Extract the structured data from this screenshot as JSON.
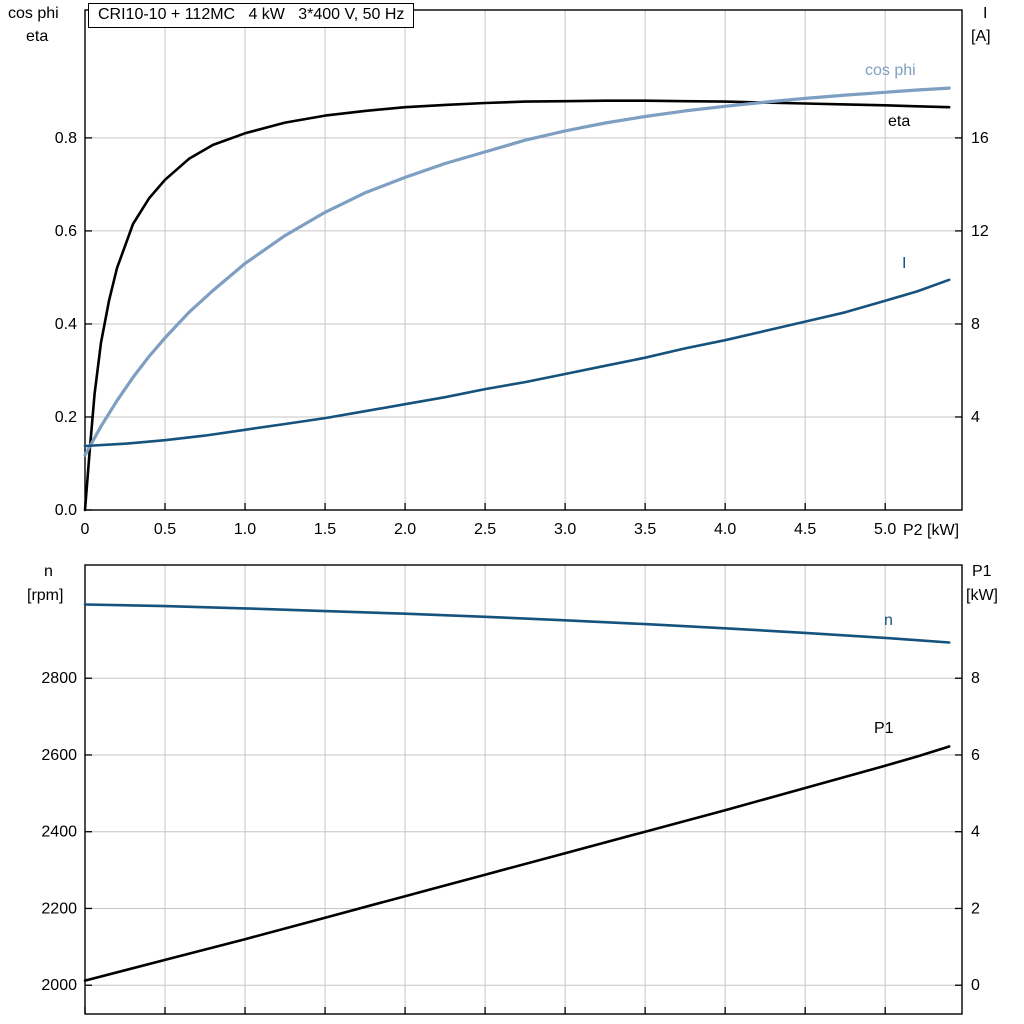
{
  "title_box": {
    "text": "CRI10-10 + 112MC   4 kW   3*400 V, 50 Hz"
  },
  "colors": {
    "black": "#000000",
    "light_blue": "#7e9fc1",
    "dark_blue": "#15527d",
    "grid": "#c6c6c6",
    "frame": "#000000",
    "background": "#ffffff"
  },
  "axis_corner_labels": {
    "top_left_line1": "cos phi",
    "top_left_line2": "eta",
    "top_right_line1": "I",
    "top_right_line2": "[A]",
    "bottom_left_line1": "n",
    "bottom_left_line2": "[rpm]",
    "bottom_right_line1": "P1",
    "bottom_right_line2": "[kW]"
  },
  "chart_data": [
    {
      "id": "top",
      "type": "line",
      "title": "CRI10-10 + 112MC   4 kW   3*400 V, 50 Hz",
      "xlabel": "P2 [kW]",
      "ylabel_left": "cos phi / eta",
      "ylabel_right": "I [A]",
      "xlim": [
        0,
        5.48
      ],
      "ylim_left": [
        0,
        1.075
      ],
      "ylim_right": [
        0,
        21.5
      ],
      "grid": true,
      "xticks": [
        0,
        0.5,
        1.0,
        1.5,
        2.0,
        2.5,
        3.0,
        3.5,
        4.0,
        4.5,
        5.0
      ],
      "xtick_labels": [
        "0",
        "0.5",
        "1.0",
        "1.5",
        "2.0",
        "2.5",
        "3.0",
        "3.5",
        "4.0",
        "4.5",
        "5.0"
      ],
      "show_xtick_labels": true,
      "yticks_left": [
        0.0,
        0.2,
        0.4,
        0.6,
        0.8
      ],
      "ytick_labels_left": [
        "0.0",
        "0.2",
        "0.4",
        "0.6",
        "0.8"
      ],
      "yticks_right": [
        4,
        8,
        12,
        16
      ],
      "ytick_labels_right": [
        "4",
        "8",
        "12",
        "16"
      ],
      "series": [
        {
          "name": "eta",
          "axis": "left",
          "color": "#000000",
          "width": 2.6,
          "x": [
            0,
            0.03,
            0.06,
            0.1,
            0.15,
            0.2,
            0.3,
            0.4,
            0.5,
            0.65,
            0.8,
            1.0,
            1.25,
            1.5,
            1.75,
            2.0,
            2.25,
            2.5,
            2.75,
            3.0,
            3.25,
            3.5,
            3.75,
            4.0,
            4.25,
            4.5,
            4.75,
            5.0,
            5.2,
            5.4
          ],
          "y": [
            0,
            0.13,
            0.25,
            0.36,
            0.45,
            0.52,
            0.615,
            0.67,
            0.71,
            0.755,
            0.785,
            0.81,
            0.833,
            0.848,
            0.858,
            0.866,
            0.871,
            0.875,
            0.878,
            0.879,
            0.88,
            0.88,
            0.879,
            0.878,
            0.876,
            0.874,
            0.872,
            0.87,
            0.868,
            0.866
          ]
        },
        {
          "name": "cos phi",
          "axis": "left",
          "color": "#7e9fc1",
          "width": 3.2,
          "x": [
            0,
            0.1,
            0.2,
            0.3,
            0.4,
            0.5,
            0.65,
            0.8,
            1.0,
            1.25,
            1.5,
            1.75,
            2.0,
            2.25,
            2.5,
            2.75,
            3.0,
            3.25,
            3.5,
            3.75,
            4.0,
            4.25,
            4.5,
            4.75,
            5.0,
            5.2,
            5.4
          ],
          "y": [
            0.118,
            0.18,
            0.235,
            0.285,
            0.33,
            0.37,
            0.425,
            0.472,
            0.53,
            0.59,
            0.64,
            0.682,
            0.715,
            0.745,
            0.77,
            0.795,
            0.815,
            0.832,
            0.846,
            0.858,
            0.868,
            0.877,
            0.885,
            0.892,
            0.898,
            0.903,
            0.907
          ]
        },
        {
          "name": "I",
          "axis": "right",
          "color": "#15527d",
          "width": 2.6,
          "x": [
            0,
            0.25,
            0.5,
            0.75,
            1.0,
            1.25,
            1.5,
            1.75,
            2.0,
            2.25,
            2.5,
            2.75,
            3.0,
            3.25,
            3.5,
            3.75,
            4.0,
            4.25,
            4.5,
            4.75,
            5.0,
            5.2,
            5.4
          ],
          "y": [
            2.75,
            2.85,
            3.0,
            3.2,
            3.45,
            3.7,
            3.95,
            4.25,
            4.55,
            4.85,
            5.2,
            5.5,
            5.85,
            6.2,
            6.55,
            6.95,
            7.3,
            7.7,
            8.1,
            8.5,
            9.0,
            9.4,
            9.9
          ]
        }
      ],
      "curve_labels": [
        {
          "text": "cos phi"
        },
        {
          "text": "eta"
        },
        {
          "text": "I"
        }
      ]
    },
    {
      "id": "bottom",
      "type": "line",
      "title": "",
      "xlabel": "",
      "ylabel_left": "n [rpm]",
      "ylabel_right": "P1 [kW]",
      "xlim": [
        0,
        5.48
      ],
      "ylim_left": [
        1925,
        3095
      ],
      "ylim_right": [
        -0.75,
        10.95
      ],
      "grid": true,
      "xticks": [
        0,
        0.5,
        1.0,
        1.5,
        2.0,
        2.5,
        3.0,
        3.5,
        4.0,
        4.5,
        5.0
      ],
      "xtick_labels": [],
      "show_xtick_labels": false,
      "yticks_left": [
        2000,
        2200,
        2400,
        2600,
        2800
      ],
      "ytick_labels_left": [
        "2000",
        "2200",
        "2400",
        "2600",
        "2800"
      ],
      "yticks_right": [
        0,
        2,
        4,
        6,
        8
      ],
      "ytick_labels_right": [
        "0",
        "2",
        "4",
        "6",
        "8"
      ],
      "series": [
        {
          "name": "n",
          "axis": "left",
          "color": "#15527d",
          "width": 2.6,
          "x": [
            0,
            0.5,
            1.0,
            1.5,
            2.0,
            2.5,
            3.0,
            3.5,
            4.0,
            4.5,
            5.0,
            5.2,
            5.4
          ],
          "y": [
            2992,
            2988,
            2982,
            2975,
            2968,
            2960,
            2951,
            2941,
            2930,
            2918,
            2905,
            2899,
            2893
          ]
        },
        {
          "name": "P1",
          "axis": "right",
          "color": "#000000",
          "width": 2.6,
          "x": [
            0,
            0.5,
            1.0,
            1.5,
            2.0,
            2.5,
            3.0,
            3.5,
            4.0,
            4.5,
            5.0,
            5.2,
            5.4
          ],
          "y": [
            0.12,
            0.66,
            1.2,
            1.76,
            2.32,
            2.88,
            3.44,
            4.0,
            4.56,
            5.14,
            5.72,
            5.96,
            6.22
          ]
        }
      ],
      "curve_labels": [
        {
          "text": "n"
        },
        {
          "text": "P1"
        }
      ]
    }
  ]
}
